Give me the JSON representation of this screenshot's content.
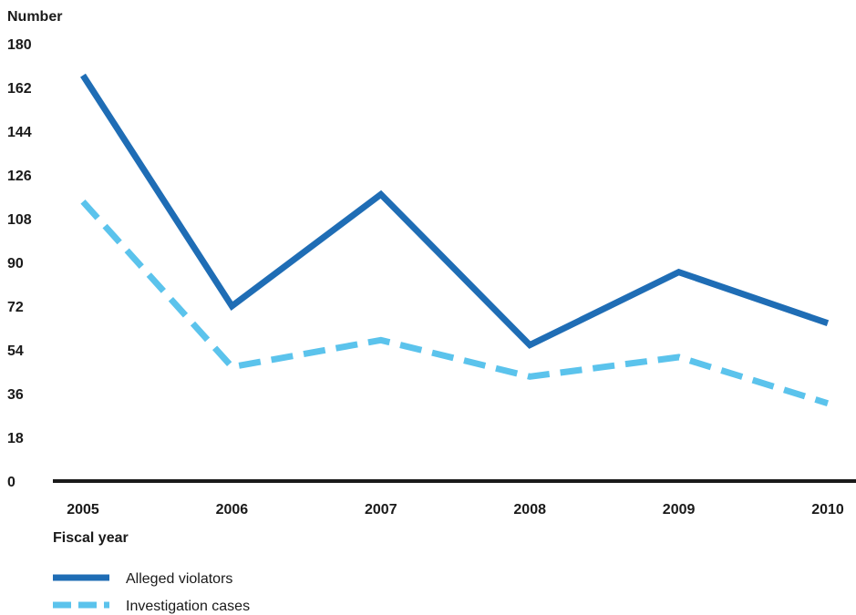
{
  "chart_data": {
    "type": "line",
    "ylabel": "Number",
    "xlabel": "Fiscal year",
    "x": [
      "2005",
      "2006",
      "2007",
      "2008",
      "2009",
      "2010"
    ],
    "yticks": [
      0,
      18,
      36,
      54,
      72,
      90,
      108,
      126,
      144,
      162,
      180
    ],
    "ylim": [
      0,
      180
    ],
    "grid": false,
    "legend_position": "bottom-left",
    "series": [
      {
        "name": "Alleged violators",
        "values": [
          167,
          72,
          118,
          56,
          86,
          65
        ],
        "color": "#1f6db5",
        "style": "solid"
      },
      {
        "name": "Investigation cases",
        "values": [
          115,
          47,
          58,
          43,
          51,
          32
        ],
        "color": "#5bc3ec",
        "style": "dashed"
      }
    ]
  }
}
